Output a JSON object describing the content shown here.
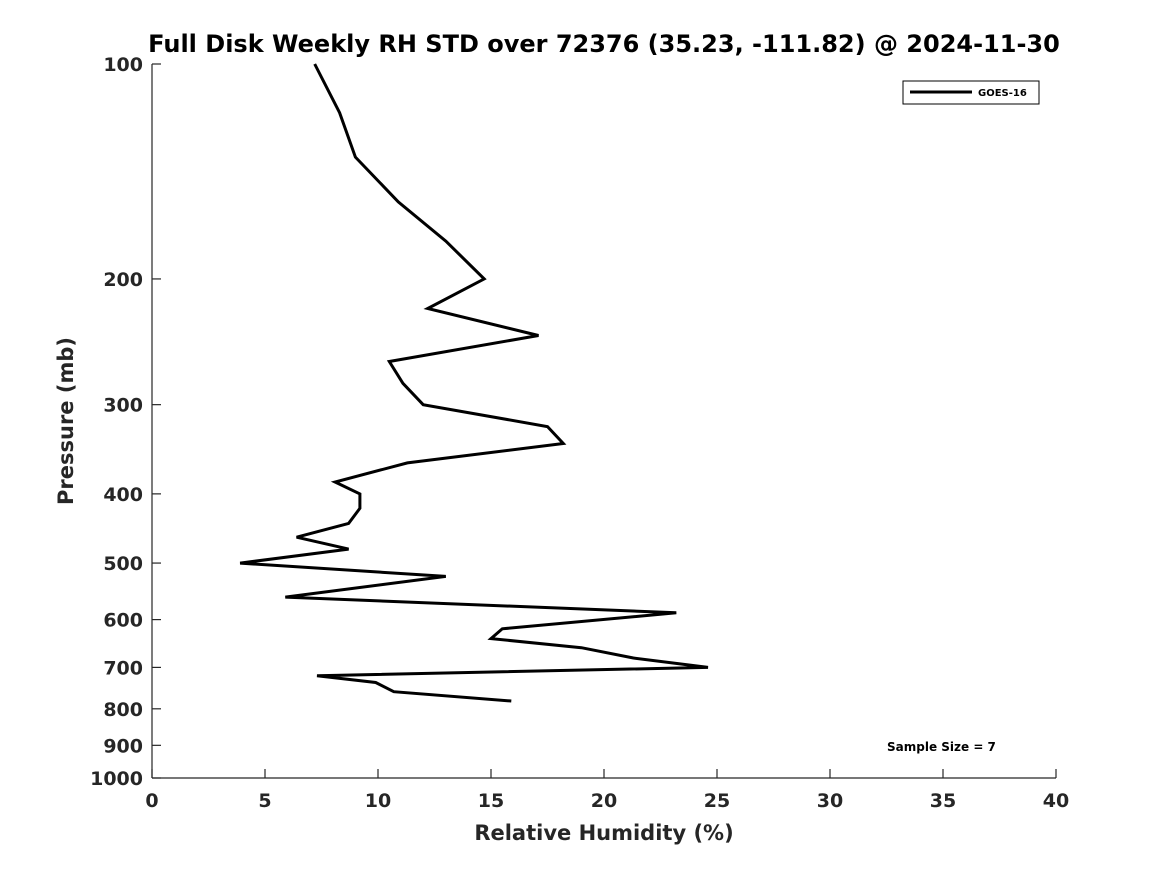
{
  "chart_data": {
    "type": "line",
    "title": "Full Disk Weekly RH STD over 72376 (35.23, -111.82) @ 2024-11-30",
    "xlabel": "Relative Humidity (%)",
    "ylabel": "Pressure (mb)",
    "xlim": [
      0,
      40
    ],
    "ylim": [
      100,
      1000
    ],
    "y_scale": "log",
    "y_reversed": true,
    "xticks": [
      0,
      5,
      10,
      15,
      20,
      25,
      30,
      35,
      40
    ],
    "yticks": [
      100,
      200,
      300,
      400,
      500,
      600,
      700,
      800,
      900,
      1000
    ],
    "grid": false,
    "legend_position": "top-right",
    "series": [
      {
        "name": "GOES-16",
        "color": "#000000",
        "x": [
          7.2,
          8.3,
          9.0,
          10.9,
          13.0,
          14.7,
          12.2,
          17.1,
          10.5,
          11.1,
          12.0,
          17.5,
          18.2,
          11.3,
          8.1,
          9.2,
          9.2,
          8.7,
          6.4,
          8.7,
          3.9,
          13.0,
          5.9,
          23.2,
          15.5,
          15.0,
          19.0,
          21.3,
          24.6,
          7.3,
          9.9,
          10.7,
          15.9
        ],
        "y": [
          100,
          117,
          135,
          156,
          177,
          200,
          220,
          240,
          261,
          280,
          300,
          322,
          340,
          362,
          385,
          400,
          419,
          440,
          460,
          478,
          500,
          522,
          558,
          587,
          618,
          638,
          657,
          679,
          700,
          719,
          735,
          757,
          780
        ]
      }
    ],
    "annotations": [
      "Sample Size = 7"
    ]
  }
}
